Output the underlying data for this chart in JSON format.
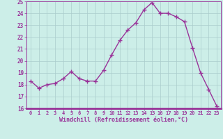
{
  "x": [
    0,
    1,
    2,
    3,
    4,
    5,
    6,
    7,
    8,
    9,
    10,
    11,
    12,
    13,
    14,
    15,
    16,
    17,
    18,
    19,
    20,
    21,
    22,
    23
  ],
  "y": [
    18.3,
    17.7,
    18.0,
    18.1,
    18.5,
    19.1,
    18.5,
    18.3,
    18.3,
    19.2,
    20.5,
    21.7,
    22.6,
    23.2,
    24.3,
    24.9,
    24.0,
    24.0,
    23.7,
    23.3,
    21.1,
    19.0,
    17.6,
    16.2
  ],
  "line_color": "#993399",
  "marker": "+",
  "marker_size": 4,
  "bg_color": "#cceee8",
  "grid_color": "#aacccc",
  "xlabel": "Windchill (Refroidissement éolien,°C)",
  "xlabel_color": "#993399",
  "tick_color": "#993399",
  "ylim": [
    16,
    25
  ],
  "yticks": [
    16,
    17,
    18,
    19,
    20,
    21,
    22,
    23,
    24,
    25
  ],
  "xticks": [
    0,
    1,
    2,
    3,
    4,
    5,
    6,
    7,
    8,
    9,
    10,
    11,
    12,
    13,
    14,
    15,
    16,
    17,
    18,
    19,
    20,
    21,
    22,
    23
  ],
  "line_width": 1.0,
  "axis_line_color": "#993399",
  "figsize": [
    3.2,
    2.0
  ],
  "dpi": 100
}
